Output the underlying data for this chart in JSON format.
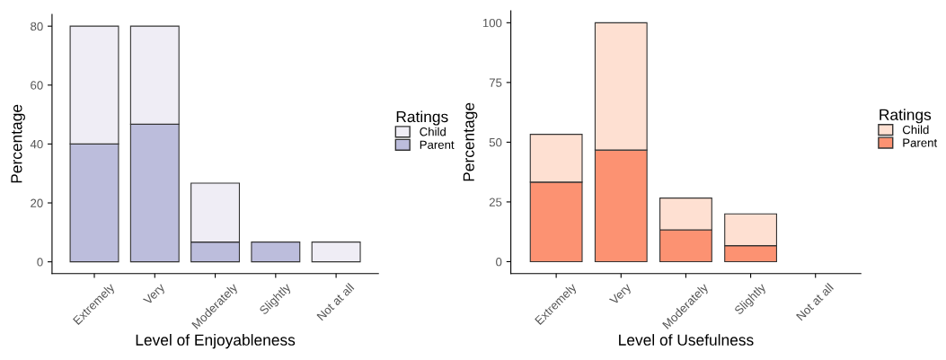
{
  "chart_data": [
    {
      "type": "bar",
      "stacked": true,
      "xlabel": "Level of Enjoyableness",
      "ylabel": "Percentage",
      "legend_title": "Ratings",
      "legend": "right",
      "categories": [
        "Extremely",
        "Very",
        "Moderately",
        "Slightly",
        "Not at all"
      ],
      "ylim": [
        -4,
        84
      ],
      "yticks": [
        0,
        20,
        40,
        60,
        80
      ],
      "grid": false,
      "series": [
        {
          "name": "Parent",
          "color": "#bcbddc",
          "values": [
            40,
            46.7,
            6.7,
            6.7,
            0
          ]
        },
        {
          "name": "Child",
          "color": "#efedf5",
          "values": [
            40,
            33.3,
            20,
            0,
            6.7
          ]
        }
      ]
    },
    {
      "type": "bar",
      "stacked": true,
      "xlabel": "Level of Usefulness",
      "ylabel": "Percentage",
      "legend_title": "Ratings",
      "legend": "right",
      "categories": [
        "Extremely",
        "Very",
        "Moderately",
        "Slightly",
        "Not at all"
      ],
      "ylim": [
        -5,
        105
      ],
      "yticks": [
        0,
        25,
        50,
        75,
        100
      ],
      "grid": false,
      "series": [
        {
          "name": "Parent",
          "color": "#fc9272",
          "values": [
            33.3,
            46.7,
            13.3,
            6.7,
            0
          ]
        },
        {
          "name": "Child",
          "color": "#fee0d2",
          "values": [
            20,
            53.3,
            13.3,
            13.3,
            0
          ]
        }
      ]
    }
  ]
}
